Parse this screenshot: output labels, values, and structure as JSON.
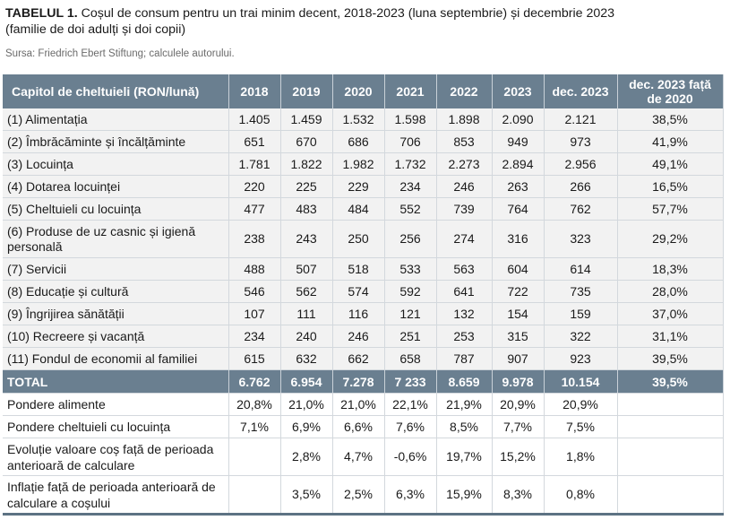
{
  "title": {
    "label": "TABELUL 1.",
    "text": " Coșul de consum pentru un trai minim decent, 2018-2023 (luna septembrie) și decembrie 2023",
    "line2": "(familie de doi adulți și doi copii)"
  },
  "source": "Sursa: Friedrich Ebert Stiftung; calculele autorului.",
  "table": {
    "headers": [
      "Capitol de cheltuieli (RON/lună)",
      "2018",
      "2019",
      "2020",
      "2021",
      "2022",
      "2023",
      "dec. 2023",
      "dec. 2023 față de 2020"
    ],
    "rows": [
      [
        "(1) Alimentația",
        "1.405",
        "1.459",
        "1.532",
        "1.598",
        "1.898",
        "2.090",
        "2.121",
        "38,5%"
      ],
      [
        "(2) Îmbrăcăminte și încălțăminte",
        "651",
        "670",
        "686",
        "706",
        "853",
        "949",
        "973",
        "41,9%"
      ],
      [
        "(3) Locuința",
        "1.781",
        "1.822",
        "1.982",
        "1.732",
        "2.273",
        "2.894",
        "2.956",
        "49,1%"
      ],
      [
        "(4) Dotarea locuinței",
        "220",
        "225",
        "229",
        "234",
        "246",
        "263",
        "266",
        "16,5%"
      ],
      [
        "(5) Cheltuieli cu locuința",
        "477",
        "483",
        "484",
        "552",
        "739",
        "764",
        "762",
        "57,7%"
      ],
      [
        "(6) Produse de uz casnic și igienă personală",
        "238",
        "243",
        "250",
        "256",
        "274",
        "316",
        "323",
        "29,2%"
      ],
      [
        "(7) Servicii",
        "488",
        "507",
        "518",
        "533",
        "563",
        "604",
        "614",
        "18,3%"
      ],
      [
        "(8) Educație și cultură",
        "546",
        "562",
        "574",
        "592",
        "641",
        "722",
        "735",
        "28,0%"
      ],
      [
        "(9) Îngrijirea sănătății",
        "107",
        "111",
        "116",
        "121",
        "132",
        "154",
        "159",
        "37,0%"
      ],
      [
        "(10) Recreere și vacanță",
        "234",
        "240",
        "246",
        "251",
        "253",
        "315",
        "322",
        "31,1%"
      ],
      [
        "(11) Fondul de economii al familiei",
        "615",
        "632",
        "662",
        "658",
        "787",
        "907",
        "923",
        "39,5%"
      ]
    ],
    "total": [
      "TOTAL",
      "6.762",
      "6.954",
      "7.278",
      "7 233",
      "8.659",
      "9.978",
      "10.154",
      "39,5%"
    ],
    "summary": [
      [
        "Pondere alimente",
        "20,8%",
        "21,0%",
        "21,0%",
        "22,1%",
        "21,9%",
        "20,9%",
        "20,9%",
        ""
      ],
      [
        "Pondere cheltuieli cu locuința",
        "7,1%",
        "6,9%",
        "6,6%",
        "7,6%",
        "8,5%",
        "7,7%",
        "7,5%",
        ""
      ],
      [
        "Evoluție valoare coș față de perioada anterioară de calculare",
        "",
        "2,8%",
        "4,7%",
        "-0,6%",
        "19,7%",
        "15,2%",
        "1,8%",
        ""
      ],
      [
        "Inflație față de perioada anterioară de calculare a coșului",
        "",
        "3,5%",
        "2,5%",
        "6,3%",
        "15,9%",
        "8,3%",
        "0,8%",
        ""
      ]
    ]
  }
}
